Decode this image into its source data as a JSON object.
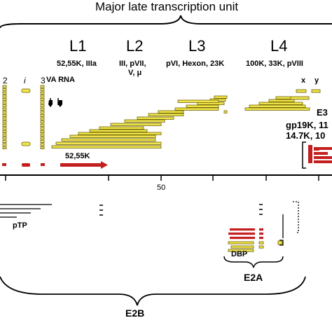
{
  "title": "Major late transcription unit",
  "regions": [
    {
      "id": "L1",
      "label": "L1",
      "proteins": [
        "52,55K, IIIa"
      ]
    },
    {
      "id": "L2",
      "label": "L2",
      "proteins": [
        "III, pVII,",
        "V, μ"
      ]
    },
    {
      "id": "L3",
      "label": "L3",
      "proteins": [
        "pVI, Hexon, 23K"
      ]
    },
    {
      "id": "L4",
      "label": "L4",
      "proteins": [
        "100K, 33K, pVIII"
      ]
    }
  ],
  "left_labels": {
    "two": "2",
    "i": "i",
    "three": "3",
    "va_rna": "VA RNA",
    "i_tick": "I"
  },
  "xy": {
    "x": "x",
    "y": "y"
  },
  "e3": {
    "label": "E3",
    "line1": "gp19K, 11",
    "line2": "14.7K, 10"
  },
  "arrow_label": "52,55K",
  "axis_tick": "50",
  "ptp": "pTP",
  "dbp": "DBP",
  "e2a": "E2A",
  "e2b": "E2B",
  "colors": {
    "yellow": "#f0e44a",
    "yellow_stroke": "#6b5f00",
    "red": "#c41e1e",
    "black": "#000000"
  }
}
